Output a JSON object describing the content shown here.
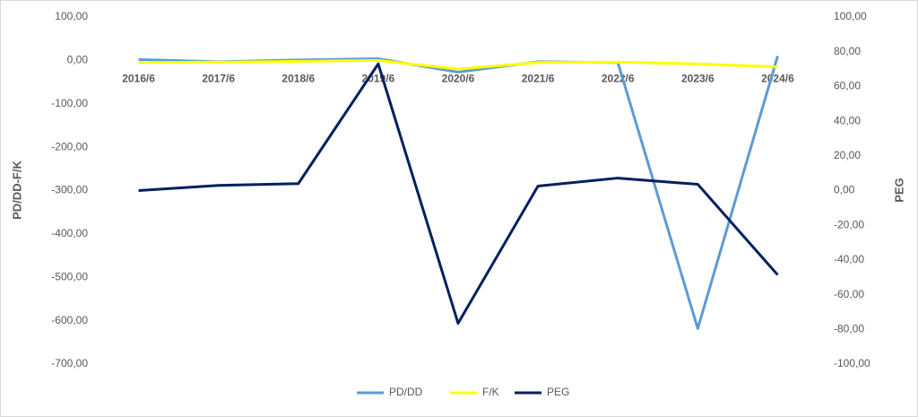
{
  "chart_data": {
    "type": "line",
    "categories": [
      "2016/6",
      "2017/6",
      "2018/6",
      "2019/6",
      "2020/6",
      "2021/6",
      "2022/6",
      "2023/6",
      "2024/6"
    ],
    "y_label": "PD/DD-F/K",
    "y2_label": "PEG",
    "ylim": [
      -700,
      100
    ],
    "yticks": [
      {
        "value": 100,
        "label": "100,00"
      },
      {
        "value": 0,
        "label": "0,00"
      },
      {
        "value": -100,
        "label": "-100,00"
      },
      {
        "value": -200,
        "label": "-200,00"
      },
      {
        "value": -300,
        "label": "-300,00"
      },
      {
        "value": -400,
        "label": "-400,00"
      },
      {
        "value": -500,
        "label": "-500,00"
      },
      {
        "value": -600,
        "label": "-600,00"
      },
      {
        "value": -700,
        "label": "-700,00"
      }
    ],
    "y2lim": [
      -100,
      100
    ],
    "y2ticks": [
      {
        "value": 100,
        "label": "100,00"
      },
      {
        "value": 80,
        "label": "80,00"
      },
      {
        "value": 60,
        "label": "60,00"
      },
      {
        "value": 40,
        "label": "40,00"
      },
      {
        "value": 20,
        "label": "20,00"
      },
      {
        "value": 0,
        "label": "0,00"
      },
      {
        "value": -20,
        "label": "-20,00"
      },
      {
        "value": -40,
        "label": "-40,00"
      },
      {
        "value": -60,
        "label": "-60,00"
      },
      {
        "value": -80,
        "label": "-80,00"
      },
      {
        "value": -100,
        "label": "-100,00"
      }
    ],
    "series": [
      {
        "name": "PD/DD",
        "color": "#5b9bd5",
        "values": [
          2,
          -3,
          1,
          4,
          -27,
          -3,
          -5,
          -618,
          10
        ]
      },
      {
        "name": "F/K",
        "color": "#ffff00",
        "values": [
          -5,
          -4,
          -2,
          0,
          -20,
          -5,
          -4,
          -8,
          -15
        ]
      },
      {
        "name": "PEG",
        "color": "#002060",
        "axis": "y2",
        "values": [
          0,
          3,
          4,
          73,
          -76.5,
          2.6,
          7.2,
          3.6,
          -48.6
        ]
      }
    ],
    "legend": "bottom"
  }
}
